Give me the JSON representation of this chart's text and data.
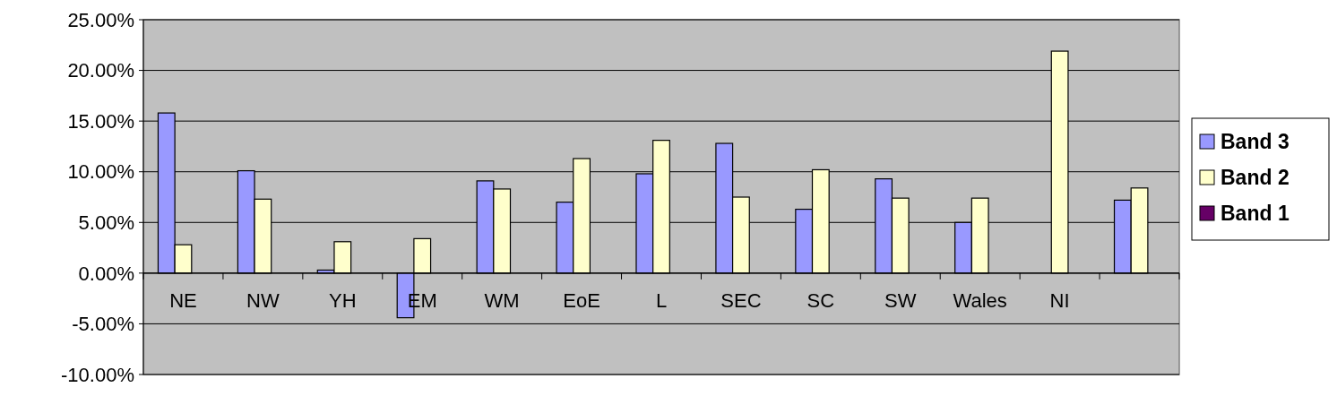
{
  "chart_data": {
    "type": "bar",
    "categories": [
      "NE",
      "NW",
      "YH",
      "EM",
      "WM",
      "EoE",
      "L",
      "SEC",
      "SC",
      "SW",
      "Wales",
      "NI",
      null
    ],
    "series": [
      {
        "name": "Band 3",
        "color": "#9999ff",
        "values": [
          15.8,
          10.1,
          0.3,
          -4.4,
          9.1,
          7.0,
          9.8,
          12.8,
          6.3,
          9.3,
          5.0,
          null,
          7.2
        ]
      },
      {
        "name": "Band 2",
        "color": "#ffffcc",
        "values": [
          2.8,
          7.3,
          3.1,
          3.4,
          8.3,
          11.3,
          13.1,
          7.5,
          10.2,
          7.4,
          7.4,
          21.9,
          8.4
        ]
      },
      {
        "name": "Band 1",
        "color": "#660066",
        "values": [
          null,
          null,
          null,
          null,
          null,
          null,
          null,
          null,
          null,
          null,
          null,
          null,
          null
        ]
      }
    ],
    "ylim": [
      -10,
      25
    ],
    "yticks": [
      {
        "value": -10,
        "label": "-10.00%"
      },
      {
        "value": -5,
        "label": "-5.00%"
      },
      {
        "value": 0,
        "label": "0.00%"
      },
      {
        "value": 5,
        "label": "5.00%"
      },
      {
        "value": 10,
        "label": "10.00%"
      },
      {
        "value": 15,
        "label": "15.00%"
      },
      {
        "value": 20,
        "label": "20.00%"
      },
      {
        "value": 25,
        "label": "25.00%"
      }
    ],
    "grid": "y",
    "legend": "right"
  }
}
